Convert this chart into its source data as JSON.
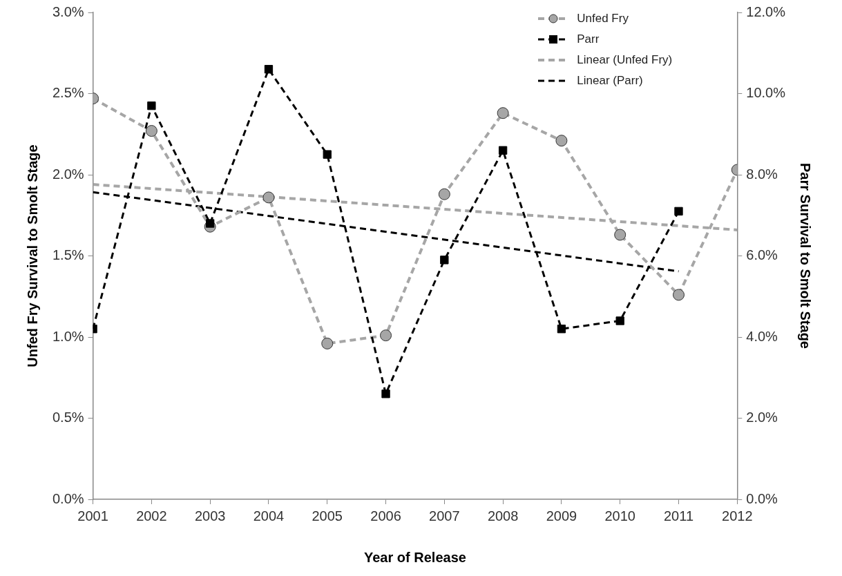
{
  "chart_data": {
    "type": "line",
    "xlabel": "Year of Release",
    "ylabel": "Unfed Fry Survival to Smolt Stage",
    "y2label": "Parr Survival to Smolt Stage",
    "x": [
      2001,
      2002,
      2003,
      2004,
      2005,
      2006,
      2007,
      2008,
      2009,
      2010,
      2011,
      2012
    ],
    "xlim": [
      2001,
      2012
    ],
    "xticks": [
      2001,
      2002,
      2003,
      2004,
      2005,
      2006,
      2007,
      2008,
      2009,
      2010,
      2011,
      2012
    ],
    "ylim": [
      0,
      3
    ],
    "yticks": [
      {
        "value": 0,
        "label": "0.0%"
      },
      {
        "value": 0.5,
        "label": "0.5%"
      },
      {
        "value": 1,
        "label": "1.0%"
      },
      {
        "value": 1.5,
        "label": "1.5%"
      },
      {
        "value": 2,
        "label": "2.0%"
      },
      {
        "value": 2.5,
        "label": "2.5%"
      },
      {
        "value": 3,
        "label": "3.0%"
      }
    ],
    "y2lim": [
      0,
      12
    ],
    "y2ticks": [
      {
        "value": 0,
        "label": "0.0%"
      },
      {
        "value": 2,
        "label": "2.0%"
      },
      {
        "value": 4,
        "label": "4.0%"
      },
      {
        "value": 6,
        "label": "6.0%"
      },
      {
        "value": 8,
        "label": "8.0%"
      },
      {
        "value": 10,
        "label": "10.0%"
      },
      {
        "value": 12,
        "label": "12.0%"
      }
    ],
    "legend": "top right",
    "series": [
      {
        "name": "Unfed Fry",
        "color": "#a6a6a6",
        "marker": "circle",
        "line_style": "dashed",
        "values": [
          2.47,
          2.27,
          1.68,
          1.86,
          0.96,
          1.01,
          1.88,
          2.38,
          2.21,
          1.63,
          1.26,
          2.03
        ]
      },
      {
        "name": "Parr",
        "color": "#000000",
        "marker": "square",
        "line_style": "dashed",
        "axis": "y2",
        "values": [
          4.2,
          9.7,
          6.8,
          10.6,
          8.5,
          2.6,
          5.9,
          8.6,
          4.2,
          4.4,
          7.1,
          null
        ]
      },
      {
        "name": "Linear (Unfed Fry)",
        "color": "#a6a6a6",
        "marker": "none",
        "line_style": "dashed",
        "x": [
          2001,
          2012
        ],
        "values": [
          1.94,
          1.66
        ]
      },
      {
        "name": "Linear (Parr)",
        "color": "#000000",
        "marker": "none",
        "line_style": "dashed",
        "axis": "y2",
        "x": [
          2001,
          2011
        ],
        "values": [
          7.57,
          5.62
        ]
      }
    ]
  }
}
